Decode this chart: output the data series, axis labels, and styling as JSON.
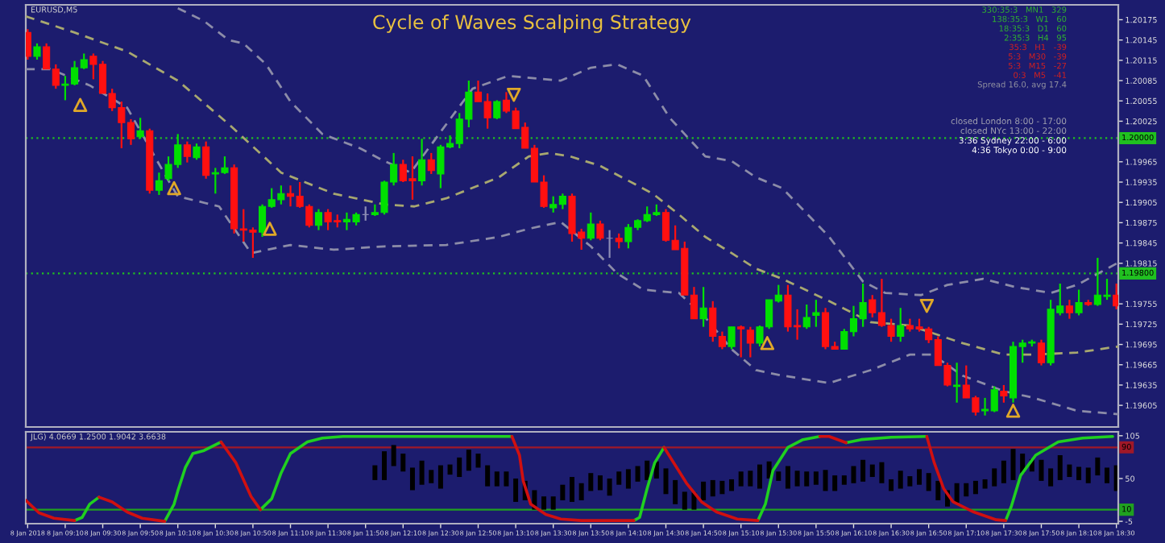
{
  "chart_data": [
    {
      "type": "candlestick",
      "title": "Cycle of Waves Scalping Strategy",
      "annotations": [
        "EURUSD,M5",
        "330:35:3   MN1   329",
        "138:35:3   W1   60",
        "18:35:3   D1   60",
        "2:35:3   H4   95",
        "35:3   H1   -39",
        "5:3   M30   -39",
        "5:3   M15   -27",
        "0:3   M5   -41",
        "Spread 16.0, avg 17.4",
        "closed London 8:00 - 17:00",
        "closed NYc 13:00 - 22:00",
        "3:36 Sydney 22:00 - 6:00",
        "4:36 Tokyo 0:00 - 9:00"
      ],
      "x": [
        "2018-01-08T08:50",
        "2018-01-08T08:55",
        "2018-01-08T09:00",
        "2018-01-08T09:05",
        "2018-01-08T09:10",
        "2018-01-08T09:15",
        "2018-01-08T09:20",
        "2018-01-08T09:25",
        "2018-01-08T09:30",
        "2018-01-08T09:35",
        "2018-01-08T09:40",
        "2018-01-08T09:45",
        "2018-01-08T09:50",
        "2018-01-08T09:55",
        "2018-01-08T10:00",
        "2018-01-08T10:05",
        "2018-01-08T10:10",
        "2018-01-08T10:15",
        "2018-01-08T10:20",
        "2018-01-08T10:25",
        "2018-01-08T10:30",
        "2018-01-08T10:35",
        "2018-01-08T10:40",
        "2018-01-08T10:45",
        "2018-01-08T10:50",
        "2018-01-08T10:55",
        "2018-01-08T11:00",
        "2018-01-08T11:05",
        "2018-01-08T11:10",
        "2018-01-08T11:15",
        "2018-01-08T11:20",
        "2018-01-08T11:25",
        "2018-01-08T11:30",
        "2018-01-08T11:35",
        "2018-01-08T11:40",
        "2018-01-08T11:45",
        "2018-01-08T11:50",
        "2018-01-08T11:55",
        "2018-01-08T12:00",
        "2018-01-08T12:05",
        "2018-01-08T12:10",
        "2018-01-08T12:15",
        "2018-01-08T12:20",
        "2018-01-08T12:25",
        "2018-01-08T12:30",
        "2018-01-08T12:35",
        "2018-01-08T12:40",
        "2018-01-08T12:45",
        "2018-01-08T12:50",
        "2018-01-08T12:55",
        "2018-01-08T13:00",
        "2018-01-08T13:05",
        "2018-01-08T13:10",
        "2018-01-08T13:15",
        "2018-01-08T13:20",
        "2018-01-08T13:25",
        "2018-01-08T13:30",
        "2018-01-08T13:35",
        "2018-01-08T13:40",
        "2018-01-08T13:45",
        "2018-01-08T13:50",
        "2018-01-08T13:55",
        "2018-01-08T14:00",
        "2018-01-08T14:05",
        "2018-01-08T14:10",
        "2018-01-08T14:15",
        "2018-01-08T14:20",
        "2018-01-08T14:25",
        "2018-01-08T14:30",
        "2018-01-08T14:35",
        "2018-01-08T14:40",
        "2018-01-08T14:45",
        "2018-01-08T14:50",
        "2018-01-08T14:55",
        "2018-01-08T15:00",
        "2018-01-08T15:05",
        "2018-01-08T15:10",
        "2018-01-08T15:15",
        "2018-01-08T15:20",
        "2018-01-08T15:25",
        "2018-01-08T15:30",
        "2018-01-08T15:35",
        "2018-01-08T15:40",
        "2018-01-08T15:45",
        "2018-01-08T15:50",
        "2018-01-08T15:55",
        "2018-01-08T16:00",
        "2018-01-08T16:05",
        "2018-01-08T16:10",
        "2018-01-08T16:15",
        "2018-01-08T16:20",
        "2018-01-08T16:25",
        "2018-01-08T16:30",
        "2018-01-08T16:35",
        "2018-01-08T16:40",
        "2018-01-08T16:45",
        "2018-01-08T16:50",
        "2018-01-08T16:55",
        "2018-01-08T17:00",
        "2018-01-08T17:05",
        "2018-01-08T17:10",
        "2018-01-08T17:15",
        "2018-01-08T17:20",
        "2018-01-08T17:25",
        "2018-01-08T17:30",
        "2018-01-08T17:35",
        "2018-01-08T17:40",
        "2018-01-08T17:45",
        "2018-01-08T17:50",
        "2018-01-08T17:55",
        "2018-01-08T18:00",
        "2018-01-08T18:05",
        "2018-01-08T18:10",
        "2018-01-08T18:15",
        "2018-01-08T18:20",
        "2018-01-08T18:25",
        "2018-01-08T18:30"
      ],
      "ohlc": [
        [
          1.20156,
          1.20161,
          1.20116,
          1.20121
        ],
        [
          1.20121,
          1.2014,
          1.20116,
          1.20135
        ],
        [
          1.20135,
          1.2014,
          1.20102,
          1.20102
        ],
        [
          1.20102,
          1.20109,
          1.20073,
          1.20078
        ],
        [
          1.20078,
          1.20092,
          1.20056,
          1.2008
        ],
        [
          1.2008,
          1.20114,
          1.20078,
          1.20104
        ],
        [
          1.20104,
          1.20125,
          1.20102,
          1.20116
        ],
        [
          1.20121,
          1.20125,
          1.20087,
          1.20109
        ],
        [
          1.20109,
          1.20114,
          1.20066,
          1.20066
        ],
        [
          1.20066,
          1.20073,
          1.2004,
          1.20045
        ],
        [
          1.20045,
          1.20054,
          1.19985,
          1.20023
        ],
        [
          1.20023,
          1.20028,
          1.1999,
          1.19999
        ],
        [
          1.20002,
          1.2003,
          1.19999,
          1.20011
        ],
        [
          1.20011,
          1.20014,
          1.19918,
          1.19923
        ],
        [
          1.19923,
          1.19949,
          1.19916,
          1.19937
        ],
        [
          1.1994,
          1.19973,
          1.19937,
          1.19961
        ],
        [
          1.19961,
          1.20006,
          1.19956,
          1.1999
        ],
        [
          1.1999,
          1.19995,
          1.19964,
          1.19973
        ],
        [
          1.19971,
          1.19992,
          1.19968,
          1.19987
        ],
        [
          1.19987,
          1.19995,
          1.1994,
          1.19945
        ],
        [
          1.19947,
          1.19956,
          1.19918,
          1.19949
        ],
        [
          1.19949,
          1.19973,
          1.19947,
          1.19956
        ],
        [
          1.19956,
          1.19961,
          1.19859,
          1.19866
        ],
        [
          1.19866,
          1.19895,
          1.19847,
          1.19864
        ],
        [
          1.19864,
          1.19868,
          1.19823,
          1.19861
        ],
        [
          1.19861,
          1.19902,
          1.19854,
          1.19899
        ],
        [
          1.19899,
          1.19926,
          1.19897,
          1.19909
        ],
        [
          1.19909,
          1.1993,
          1.19902,
          1.19918
        ],
        [
          1.19918,
          1.1993,
          1.19899,
          1.19914
        ],
        [
          1.19914,
          1.19935,
          1.19897,
          1.19899
        ],
        [
          1.19899,
          1.19902,
          1.19868,
          1.19871
        ],
        [
          1.19871,
          1.19895,
          1.19864,
          1.1989
        ],
        [
          1.1989,
          1.19895,
          1.19864,
          1.19876
        ],
        [
          1.19878,
          1.19887,
          1.19868,
          1.19876
        ],
        [
          1.19876,
          1.1989,
          1.19864,
          1.1988
        ],
        [
          1.19876,
          1.1989,
          1.19871,
          1.19887
        ],
        [
          1.19887,
          1.19899,
          1.19878,
          1.19887
        ],
        [
          1.19887,
          1.19902,
          1.19885,
          1.1989
        ],
        [
          1.1989,
          1.19937,
          1.19887,
          1.19935
        ],
        [
          1.19935,
          1.19978,
          1.1993,
          1.19961
        ],
        [
          1.19961,
          1.19968,
          1.19935,
          1.19937
        ],
        [
          1.1994,
          1.19973,
          1.19909,
          1.19937
        ],
        [
          1.19937,
          1.19999,
          1.1993,
          1.19968
        ],
        [
          1.19968,
          1.19978,
          1.19947,
          1.19952
        ],
        [
          1.19947,
          1.1999,
          1.19926,
          1.19987
        ],
        [
          1.19987,
          1.20004,
          1.19985,
          1.19992
        ],
        [
          1.19992,
          1.20037,
          1.19985,
          1.20028
        ],
        [
          1.20028,
          1.20085,
          1.20016,
          1.20068
        ],
        [
          1.20068,
          1.20085,
          1.20054,
          1.20054
        ],
        [
          1.20054,
          1.20066,
          1.20014,
          1.2003
        ],
        [
          1.2003,
          1.20056,
          1.20028,
          1.20054
        ],
        [
          1.20056,
          1.20068,
          1.20037,
          1.2004
        ],
        [
          1.2004,
          1.20045,
          1.20014,
          1.20014
        ],
        [
          1.20016,
          1.20023,
          1.19985,
          1.19985
        ],
        [
          1.19985,
          1.1999,
          1.19935,
          1.19935
        ],
        [
          1.19935,
          1.19945,
          1.19897,
          1.19899
        ],
        [
          1.19897,
          1.19914,
          1.1989,
          1.19902
        ],
        [
          1.19902,
          1.19918,
          1.19895,
          1.19914
        ],
        [
          1.19914,
          1.19918,
          1.19847,
          1.19859
        ],
        [
          1.19861,
          1.19866,
          1.19835,
          1.19852
        ],
        [
          1.19852,
          1.1989,
          1.19849,
          1.19873
        ],
        [
          1.19873,
          1.19878,
          1.19849,
          1.19852
        ],
        [
          1.19852,
          1.19864,
          1.19823,
          1.19852
        ],
        [
          1.19852,
          1.19859,
          1.19837,
          1.19847
        ],
        [
          1.19847,
          1.19873,
          1.19837,
          1.19868
        ],
        [
          1.19868,
          1.1988,
          1.19864,
          1.19878
        ],
        [
          1.19878,
          1.19899,
          1.19876,
          1.19887
        ],
        [
          1.19887,
          1.19902,
          1.19885,
          1.1989
        ],
        [
          1.1989,
          1.19895,
          1.19847,
          1.19849
        ],
        [
          1.19849,
          1.19871,
          1.19835,
          1.19835
        ],
        [
          1.19837,
          1.19847,
          1.19768,
          1.19768
        ],
        [
          1.19768,
          1.1978,
          1.19733,
          1.19733
        ],
        [
          1.19733,
          1.1978,
          1.19721,
          1.19749
        ],
        [
          1.19749,
          1.19759,
          1.19699,
          1.19707
        ],
        [
          1.19707,
          1.19714,
          1.19688,
          1.19692
        ],
        [
          1.19692,
          1.19721,
          1.19688,
          1.19721
        ],
        [
          1.19721,
          1.19723,
          1.19676,
          1.19718
        ],
        [
          1.19716,
          1.19721,
          1.19676,
          1.19697
        ],
        [
          1.19697,
          1.19723,
          1.19692,
          1.19721
        ],
        [
          1.19721,
          1.19761,
          1.19718,
          1.19761
        ],
        [
          1.19759,
          1.19783,
          1.19757,
          1.19768
        ],
        [
          1.19768,
          1.19783,
          1.19714,
          1.19721
        ],
        [
          1.19723,
          1.19747,
          1.19702,
          1.19721
        ],
        [
          1.19721,
          1.19754,
          1.19718,
          1.19735
        ],
        [
          1.19738,
          1.19761,
          1.19721,
          1.19742
        ],
        [
          1.19742,
          1.19749,
          1.19688,
          1.19692
        ],
        [
          1.19692,
          1.19699,
          1.19688,
          1.19688
        ],
        [
          1.19688,
          1.19718,
          1.19688,
          1.19714
        ],
        [
          1.19714,
          1.19752,
          1.19707,
          1.19733
        ],
        [
          1.19733,
          1.19785,
          1.19721,
          1.19757
        ],
        [
          1.19761,
          1.19768,
          1.19735,
          1.19742
        ],
        [
          1.19742,
          1.19792,
          1.19721,
          1.19723
        ],
        [
          1.19723,
          1.19733,
          1.19699,
          1.19707
        ],
        [
          1.19707,
          1.19749,
          1.19699,
          1.19723
        ],
        [
          1.19723,
          1.19733,
          1.19714,
          1.19718
        ],
        [
          1.19721,
          1.19733,
          1.19714,
          1.19718
        ],
        [
          1.19718,
          1.19721,
          1.19697,
          1.19702
        ],
        [
          1.19702,
          1.19707,
          1.19664,
          1.19664
        ],
        [
          1.19664,
          1.19668,
          1.19633,
          1.19635
        ],
        [
          1.19633,
          1.19668,
          1.19609,
          1.19635
        ],
        [
          1.19635,
          1.19664,
          1.19616,
          1.19616
        ],
        [
          1.19616,
          1.19619,
          1.1959,
          1.19595
        ],
        [
          1.19597,
          1.19616,
          1.1959,
          1.19599
        ],
        [
          1.19597,
          1.19633,
          1.19595,
          1.19628
        ],
        [
          1.19626,
          1.19635,
          1.19609,
          1.19619
        ],
        [
          1.19616,
          1.19699,
          1.19609,
          1.19692
        ],
        [
          1.19692,
          1.19702,
          1.19668,
          1.19697
        ],
        [
          1.19697,
          1.19702,
          1.19692,
          1.19699
        ],
        [
          1.19697,
          1.19702,
          1.19664,
          1.19668
        ],
        [
          1.19668,
          1.19761,
          1.19664,
          1.19747
        ],
        [
          1.19742,
          1.19785,
          1.19738,
          1.19752
        ],
        [
          1.19752,
          1.19761,
          1.19733,
          1.19742
        ],
        [
          1.19742,
          1.19776,
          1.19738,
          1.19757
        ],
        [
          1.19757,
          1.19761,
          1.19752,
          1.19754
        ],
        [
          1.19754,
          1.19823,
          1.19752,
          1.19768
        ],
        [
          1.19766,
          1.19792,
          1.19761,
          1.19768
        ],
        [
          1.19768,
          1.19785,
          1.19747,
          1.19752
        ]
      ],
      "colors": [
        "#ff1010",
        "#00e000",
        "#ff1010",
        "#ff1010",
        "#00e000",
        "#00e000",
        "#00e000",
        "#ff1010",
        "#ff1010",
        "#ff1010",
        "#ff1010",
        "#ff1010",
        "#00e000",
        "#ff1010",
        "#00e000",
        "#00e000",
        "#00e000",
        "#ff1010",
        "#00e000",
        "#ff1010",
        "#00e000",
        "#00e000",
        "#ff1010",
        "#ff1010",
        "#ff1010",
        "#00e000",
        "#00e000",
        "#00e000",
        "#ff1010",
        "#ff1010",
        "#ff1010",
        "#00e000",
        "#ff1010",
        "#ff1010",
        "#00e000",
        "#00e000",
        "#8c8cb4",
        "#00e000",
        "#00e000",
        "#00e000",
        "#ff1010",
        "#ff1010",
        "#00e000",
        "#ff1010",
        "#00e000",
        "#00e000",
        "#00e000",
        "#00e000",
        "#ff1010",
        "#ff1010",
        "#00e000",
        "#ff1010",
        "#ff1010",
        "#ff1010",
        "#ff1010",
        "#ff1010",
        "#00e000",
        "#00e000",
        "#ff1010",
        "#ff1010",
        "#00e000",
        "#ff1010",
        "#8c8cb4",
        "#ff1010",
        "#00e000",
        "#00e000",
        "#00e000",
        "#00e000",
        "#ff1010",
        "#ff1010",
        "#ff1010",
        "#ff1010",
        "#00e000",
        "#ff1010",
        "#ff1010",
        "#00e000",
        "#ff1010",
        "#ff1010",
        "#00e000",
        "#00e000",
        "#00e000",
        "#ff1010",
        "#ff1010",
        "#00e000",
        "#00e000",
        "#ff1010",
        "#ff1010",
        "#00e000",
        "#00e000",
        "#00e000",
        "#ff1010",
        "#ff1010",
        "#ff1010",
        "#00e000",
        "#ff1010",
        "#ff1010",
        "#ff1010",
        "#ff1010",
        "#ff1010",
        "#00e000",
        "#ff1010",
        "#ff1010",
        "#00e000",
        "#00e000",
        "#ff1010",
        "#00e000",
        "#00e000",
        "#00e000",
        "#ff1010",
        "#00e000",
        "#00e000",
        "#ff1010",
        "#00e000",
        "#ff1010",
        "#00e000",
        "#00e000",
        "#ff1010"
      ],
      "series": [
        {
          "type": "line",
          "color": "#8c8ca8",
          "line_style": "dashed",
          "x": [
            "2018-01-08T10:10",
            "2018-01-08T10:24",
            "2018-01-08T10:37",
            "2018-01-08T10:45",
            "2018-01-08T10:57",
            "2018-01-08T11:10",
            "2018-01-08T11:27",
            "2018-01-08T11:47",
            "2018-01-08T12:00",
            "2018-01-08T12:14",
            "2018-01-08T12:47",
            "2018-01-08T13:06",
            "2018-01-08T13:34",
            "2018-01-08T13:50",
            "2018-01-08T14:04",
            "2018-01-08T14:18",
            "2018-01-08T14:32",
            "2018-01-08T14:51",
            "2018-01-08T15:05",
            "2018-01-08T15:18",
            "2018-01-08T15:32",
            "2018-01-08T15:57",
            "2018-01-08T16:15",
            "2018-01-08T16:27",
            "2018-01-08T16:46",
            "2018-01-08T17:00",
            "2018-01-08T17:19",
            "2018-01-08T17:36",
            "2018-01-08T17:55",
            "2018-01-08T18:09",
            "2018-01-08T18:31"
          ],
          "values": [
            1.20192,
            1.20173,
            1.20145,
            1.2014,
            1.20109,
            1.20054,
            1.20006,
            1.19985,
            1.19966,
            1.19949,
            1.20073,
            1.20092,
            1.20085,
            1.20104,
            1.20109,
            1.20092,
            1.2003,
            1.19973,
            1.19966,
            1.19942,
            1.19926,
            1.19854,
            1.19788,
            1.19771,
            1.19768,
            1.19783,
            1.19792,
            1.1978,
            1.19771,
            1.19783,
            1.19816
          ]
        },
        {
          "type": "line",
          "color": "#a8a870",
          "line_style": "dashed",
          "x": [
            "2018-01-08T08:49",
            "2018-01-08T09:15",
            "2018-01-08T09:43",
            "2018-01-08T10:10",
            "2018-01-08T10:37",
            "2018-01-08T11:05",
            "2018-01-08T11:33",
            "2018-01-08T12:00",
            "2018-01-08T12:16",
            "2018-01-08T12:33",
            "2018-01-08T13:01",
            "2018-01-08T13:17",
            "2018-01-08T13:28",
            "2018-01-08T13:39",
            "2018-01-08T13:55",
            "2018-01-08T14:23",
            "2018-01-08T14:37",
            "2018-01-08T14:51",
            "2018-01-08T15:05",
            "2018-01-08T15:18",
            "2018-01-08T15:32",
            "2018-01-08T15:57",
            "2018-01-08T16:19",
            "2018-01-08T16:40",
            "2018-01-08T17:08",
            "2018-01-08T17:30",
            "2018-01-08T17:46",
            "2018-01-08T18:09",
            "2018-01-08T18:31"
          ],
          "values": [
            1.2018,
            1.20156,
            1.20128,
            1.20085,
            1.20021,
            1.19949,
            1.19918,
            1.19902,
            1.19899,
            1.19911,
            1.19942,
            1.19973,
            1.19978,
            1.19973,
            1.19959,
            1.19918,
            1.19887,
            1.19854,
            1.1983,
            1.19807,
            1.19792,
            1.19759,
            1.19728,
            1.19723,
            1.19697,
            1.1968,
            1.1968,
            1.19683,
            1.19692
          ]
        },
        {
          "type": "line",
          "color": "#8c8ca8",
          "line_style": "dashed",
          "x": [
            "2018-01-08T08:49",
            "2018-01-08T09:02",
            "2018-01-08T09:23",
            "2018-01-08T09:43",
            "2018-01-08T10:04",
            "2018-01-08T10:10",
            "2018-01-08T10:32",
            "2018-01-08T10:49",
            "2018-01-08T11:10",
            "2018-01-08T11:33",
            "2018-01-08T12:00",
            "2018-01-08T12:33",
            "2018-01-08T13:01",
            "2018-01-08T13:17",
            "2018-01-08T13:34",
            "2018-01-08T13:50",
            "2018-01-08T14:04",
            "2018-01-08T14:18",
            "2018-01-08T14:37",
            "2018-01-08T14:51",
            "2018-01-08T15:05",
            "2018-01-08T15:18",
            "2018-01-08T15:32",
            "2018-01-08T15:57",
            "2018-01-08T16:19",
            "2018-01-08T16:40",
            "2018-01-08T16:52",
            "2018-01-08T17:08",
            "2018-01-08T17:30",
            "2018-01-08T17:46",
            "2018-01-08T18:09",
            "2018-01-08T18:31"
          ],
          "values": [
            1.20102,
            1.20102,
            1.20078,
            1.20045,
            1.19942,
            1.19914,
            1.19899,
            1.1983,
            1.19842,
            1.19835,
            1.1984,
            1.19842,
            1.19854,
            1.19866,
            1.19876,
            1.1984,
            1.198,
            1.19776,
            1.19771,
            1.19735,
            1.19688,
            1.19657,
            1.19649,
            1.19638,
            1.19657,
            1.1968,
            1.1968,
            1.19649,
            1.19626,
            1.19616,
            1.19597,
            1.19592
          ]
        },
        {
          "type": "scatter",
          "color": "#e0a828",
          "marker": "triangle",
          "x": [
            "2018-01-08T09:18",
            "2018-01-08T10:08",
            "2018-01-08T10:59",
            "2018-01-08T15:24",
            "2018-01-08T17:35"
          ],
          "values": [
            1.20049,
            1.19926,
            1.19866,
            1.19697,
            1.19597
          ]
        },
        {
          "type": "scatter",
          "color": "#e0a828",
          "marker": "triangle_down",
          "x": [
            "2018-01-08T13:09",
            "2018-01-08T16:49"
          ],
          "values": [
            1.20064,
            1.19752
          ]
        }
      ],
      "xlim": [
        "2018-01-08T08:49",
        "2018-01-08T18:31"
      ],
      "ylim": [
        1.19573,
        1.20197
      ],
      "yticks": [
        1.20175,
        1.20145,
        1.20115,
        1.20085,
        1.20055,
        1.20025,
        1.19965,
        1.19935,
        1.19905,
        1.19875,
        1.19845,
        1.19815,
        1.19755,
        1.19725,
        1.19695,
        1.19665,
        1.19635,
        1.19605
      ],
      "ref_lines": [
        {
          "axis": "y",
          "value": 1.2,
          "label": "1.20000",
          "color": "#20c020",
          "line_style": "dotted"
        },
        {
          "axis": "y",
          "value": 1.198,
          "label": "1.19800",
          "color": "#20c020",
          "line_style": "dotted"
        }
      ],
      "tick_labels": "y"
    },
    {
      "type": "line",
      "annotations": [
        "JLG) 4.0669 1.2500 1.9042 3.6638"
      ],
      "x": [
        "2018-01-08T08:49",
        "2018-01-08T08:56",
        "2018-01-08T09:04",
        "2018-01-08T09:15",
        "2018-01-08T09:19",
        "2018-01-08T09:23",
        "2018-01-08T09:28",
        "2018-01-08T09:35",
        "2018-01-08T09:43",
        "2018-01-08T09:51",
        "2018-01-08T10:03",
        "2018-01-08T10:08",
        "2018-01-08T10:10",
        "2018-01-08T10:14",
        "2018-01-08T10:18",
        "2018-01-08T10:24",
        "2018-01-08T10:33",
        "2018-01-08T10:41",
        "2018-01-08T10:49",
        "2018-01-08T10:54",
        "2018-01-08T11:00",
        "2018-01-08T11:05",
        "2018-01-08T11:10",
        "2018-01-08T11:19",
        "2018-01-08T11:27",
        "2018-01-08T11:38",
        "2018-01-08T13:08",
        "2018-01-08T13:12",
        "2018-01-08T13:14",
        "2018-01-08T13:18",
        "2018-01-08T13:26",
        "2018-01-08T13:34",
        "2018-01-08T13:45",
        "2018-01-08T14:13",
        "2018-01-08T14:16",
        "2018-01-08T14:20",
        "2018-01-08T14:24",
        "2018-01-08T14:29",
        "2018-01-08T14:35",
        "2018-01-08T14:41",
        "2018-01-08T14:49",
        "2018-01-08T14:57",
        "2018-01-08T15:08",
        "2018-01-08T15:19",
        "2018-01-08T15:23",
        "2018-01-08T15:27",
        "2018-01-08T15:35",
        "2018-01-08T15:43",
        "2018-01-08T15:52",
        "2018-01-08T15:57",
        "2018-01-08T16:06",
        "2018-01-08T16:14",
        "2018-01-08T16:30",
        "2018-01-08T16:49",
        "2018-01-08T16:53",
        "2018-01-08T16:58",
        "2018-01-08T17:03",
        "2018-01-08T17:14",
        "2018-01-08T17:26",
        "2018-01-08T17:31",
        "2018-01-08T17:34",
        "2018-01-08T17:39",
        "2018-01-08T17:47",
        "2018-01-08T17:59",
        "2018-01-08T18:12",
        "2018-01-08T18:28"
      ],
      "series": [
        {
          "type": "line",
          "color": "#20d020",
          "values": [
            null,
            null,
            null,
            -4,
            0,
            17,
            26,
            null,
            null,
            null,
            -5,
            17,
            34,
            64,
            82,
            86,
            97,
            null,
            null,
            10,
            24,
            57,
            82,
            97,
            102,
            104,
            104,
            null,
            null,
            null,
            null,
            null,
            null,
            -4,
            0,
            37,
            70,
            90,
            null,
            null,
            null,
            null,
            null,
            -4,
            17,
            60,
            90,
            100,
            104,
            null,
            96,
            100,
            103,
            104,
            null,
            null,
            null,
            null,
            null,
            -4,
            14,
            54,
            80,
            97,
            102,
            104
          ]
        },
        {
          "type": "line",
          "color": "#d01010",
          "values": [
            22,
            6,
            -1,
            -4,
            null,
            null,
            26,
            20,
            7,
            -1,
            -5,
            null,
            null,
            null,
            null,
            null,
            97,
            70,
            27,
            10,
            null,
            null,
            null,
            null,
            null,
            null,
            104,
            80,
            47,
            17,
            4,
            -2,
            -4,
            -4,
            null,
            null,
            null,
            90,
            67,
            44,
            20,
            7,
            -2,
            -4,
            null,
            null,
            null,
            null,
            104,
            104,
            96,
            null,
            null,
            104,
            70,
            37,
            20,
            7,
            -3,
            -4,
            null,
            null,
            null,
            null,
            null,
            null
          ]
        },
        {
          "type": "bar",
          "color": "#000000",
          "x": [
            "2018-01-08T11:55",
            "2018-01-08T12:00",
            "2018-01-08T12:05",
            "2018-01-08T12:10",
            "2018-01-08T12:15",
            "2018-01-08T12:20",
            "2018-01-08T12:25",
            "2018-01-08T12:30",
            "2018-01-08T12:35",
            "2018-01-08T12:40",
            "2018-01-08T12:45",
            "2018-01-08T12:50",
            "2018-01-08T12:55",
            "2018-01-08T13:00",
            "2018-01-08T13:05",
            "2018-01-08T13:10",
            "2018-01-08T13:15",
            "2018-01-08T13:20",
            "2018-01-08T13:25",
            "2018-01-08T13:30",
            "2018-01-08T13:35",
            "2018-01-08T13:40",
            "2018-01-08T13:45",
            "2018-01-08T13:50",
            "2018-01-08T13:55",
            "2018-01-08T14:00",
            "2018-01-08T14:05",
            "2018-01-08T14:10",
            "2018-01-08T14:15",
            "2018-01-08T14:20",
            "2018-01-08T14:25",
            "2018-01-08T14:30",
            "2018-01-08T14:35",
            "2018-01-08T14:40",
            "2018-01-08T14:45",
            "2018-01-08T14:50",
            "2018-01-08T14:55",
            "2018-01-08T15:00",
            "2018-01-08T15:05",
            "2018-01-08T15:10",
            "2018-01-08T15:15",
            "2018-01-08T15:20",
            "2018-01-08T15:25",
            "2018-01-08T15:30",
            "2018-01-08T15:35",
            "2018-01-08T15:40",
            "2018-01-08T15:45",
            "2018-01-08T15:50",
            "2018-01-08T15:55",
            "2018-01-08T16:00",
            "2018-01-08T16:05",
            "2018-01-08T16:10",
            "2018-01-08T16:15",
            "2018-01-08T16:20",
            "2018-01-08T16:25",
            "2018-01-08T16:30",
            "2018-01-08T16:35",
            "2018-01-08T16:40",
            "2018-01-08T16:45",
            "2018-01-08T16:50",
            "2018-01-08T16:55",
            "2018-01-08T17:00",
            "2018-01-08T17:05",
            "2018-01-08T17:10",
            "2018-01-08T17:15",
            "2018-01-08T17:20",
            "2018-01-08T17:25",
            "2018-01-08T17:30",
            "2018-01-08T17:35",
            "2018-01-08T17:40",
            "2018-01-08T17:45",
            "2018-01-08T17:50",
            "2018-01-08T17:55",
            "2018-01-08T18:00",
            "2018-01-08T18:05",
            "2018-01-08T18:10",
            "2018-01-08T18:15",
            "2018-01-08T18:20",
            "2018-01-08T18:25",
            "2018-01-08T18:30"
          ],
          "base": [
            48,
            48,
            66,
            59,
            35,
            42,
            44,
            37,
            55,
            52,
            60,
            64,
            40,
            40,
            40,
            20,
            22,
            10,
            10,
            10,
            22,
            20,
            22,
            34,
            35,
            28,
            42,
            37,
            46,
            48,
            50,
            30,
            17,
            10,
            10,
            22,
            27,
            30,
            34,
            40,
            40,
            37,
            50,
            47,
            37,
            40,
            40,
            42,
            34,
            34,
            42,
            44,
            46,
            52,
            44,
            34,
            37,
            40,
            42,
            34,
            22,
            14,
            19,
            27,
            30,
            37,
            40,
            44,
            48,
            57,
            59,
            47,
            40,
            48,
            52,
            48,
            44,
            54,
            44,
            34
          ],
          "values": [
            19,
            37,
            27,
            23,
            29,
            31,
            17,
            30,
            13,
            25,
            27,
            18,
            27,
            19,
            19,
            30,
            25,
            25,
            17,
            17,
            20,
            32,
            22,
            23,
            19,
            22,
            17,
            25,
            20,
            25,
            22,
            33,
            31,
            23,
            22,
            24,
            21,
            17,
            15,
            19,
            20,
            31,
            22,
            12,
            29,
            20,
            19,
            17,
            27,
            20,
            12,
            22,
            28,
            16,
            27,
            15,
            23,
            13,
            20,
            23,
            25,
            21,
            25,
            17,
            17,
            12,
            23,
            29,
            40,
            25,
            16,
            27,
            23,
            32,
            16,
            17,
            20,
            23,
            20,
            33
          ]
        }
      ],
      "xlim": [
        "2018-01-08T08:49",
        "2018-01-08T18:31"
      ],
      "ylim": [
        -8,
        110
      ],
      "yticks": [
        105,
        50,
        -5
      ],
      "xticks": [
        {
          "value": "2018-01-08T08:50",
          "label": "8 Jan 2018"
        },
        {
          "value": "2018-01-08T09:10",
          "label": "8 Jan 09:10"
        },
        {
          "value": "2018-01-08T09:30",
          "label": "8 Jan 09:30"
        },
        {
          "value": "2018-01-08T09:50",
          "label": "8 Jan 09:50"
        },
        {
          "value": "2018-01-08T10:10",
          "label": "8 Jan 10:10"
        },
        {
          "value": "2018-01-08T10:30",
          "label": "8 Jan 10:30"
        },
        {
          "value": "2018-01-08T10:50",
          "label": "8 Jan 10:50"
        },
        {
          "value": "2018-01-08T11:10",
          "label": "8 Jan 11:10"
        },
        {
          "value": "2018-01-08T11:30",
          "label": "8 Jan 11:30"
        },
        {
          "value": "2018-01-08T11:50",
          "label": "8 Jan 11:50"
        },
        {
          "value": "2018-01-08T12:10",
          "label": "8 Jan 12:10"
        },
        {
          "value": "2018-01-08T12:30",
          "label": "8 Jan 12:30"
        },
        {
          "value": "2018-01-08T12:50",
          "label": "8 Jan 12:50"
        },
        {
          "value": "2018-01-08T13:10",
          "label": "8 Jan 13:10"
        },
        {
          "value": "2018-01-08T13:30",
          "label": "8 Jan 13:30"
        },
        {
          "value": "2018-01-08T13:50",
          "label": "8 Jan 13:50"
        },
        {
          "value": "2018-01-08T14:10",
          "label": "8 Jan 14:10"
        },
        {
          "value": "2018-01-08T14:30",
          "label": "8 Jan 14:30"
        },
        {
          "value": "2018-01-08T14:50",
          "label": "8 Jan 14:50"
        },
        {
          "value": "2018-01-08T15:10",
          "label": "8 Jan 15:10"
        },
        {
          "value": "2018-01-08T15:30",
          "label": "8 Jan 15:30"
        },
        {
          "value": "2018-01-08T15:50",
          "label": "8 Jan 15:50"
        },
        {
          "value": "2018-01-08T16:10",
          "label": "8 Jan 16:10"
        },
        {
          "value": "2018-01-08T16:30",
          "label": "8 Jan 16:30"
        },
        {
          "value": "2018-01-08T16:50",
          "label": "8 Jan 16:50"
        },
        {
          "value": "2018-01-08T17:10",
          "label": "8 Jan 17:10"
        },
        {
          "value": "2018-01-08T17:30",
          "label": "8 Jan 17:30"
        },
        {
          "value": "2018-01-08T17:50",
          "label": "8 Jan 17:50"
        },
        {
          "value": "2018-01-08T18:10",
          "label": "8 Jan 18:10"
        },
        {
          "value": "2018-01-08T18:30",
          "label": "8 Jan 18:30"
        }
      ],
      "ref_lines": [
        {
          "axis": "y",
          "value": 90,
          "label": "90",
          "color": "#a01828",
          "line_style": "solid"
        },
        {
          "axis": "y",
          "value": 10,
          "label": "10",
          "color": "#20a020",
          "line_style": "solid"
        }
      ]
    }
  ]
}
